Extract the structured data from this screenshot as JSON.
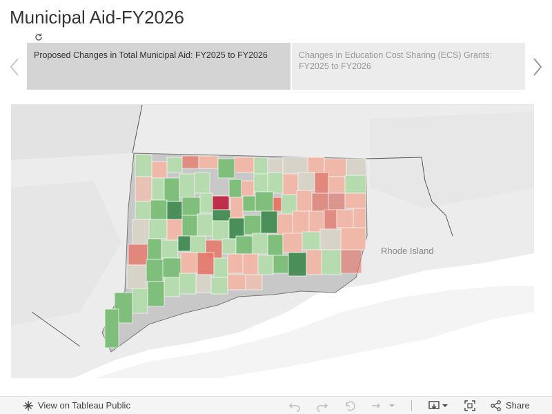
{
  "header": {
    "title": "Municipal Aid-FY2026"
  },
  "story": {
    "points": [
      {
        "label": "Proposed Changes in Total Municipal Aid: FY2025 to FY2026",
        "selected": true
      },
      {
        "label": "Changes in Education Cost Sharing (ECS) Grants: FY2025 to FY2026",
        "selected": false
      }
    ]
  },
  "map": {
    "region_label": "Rhode Island",
    "colors": {
      "dark_green": "#4a8f5a",
      "green": "#7fbf7b",
      "light_green": "#b6dbae",
      "neutral": "#d8d3c8",
      "light_red": "#f0b8a8",
      "red": "#e8786a",
      "dark_red": "#c0304a"
    }
  },
  "toolbar": {
    "view_label": "View on Tableau Public",
    "share_label": "Share"
  }
}
